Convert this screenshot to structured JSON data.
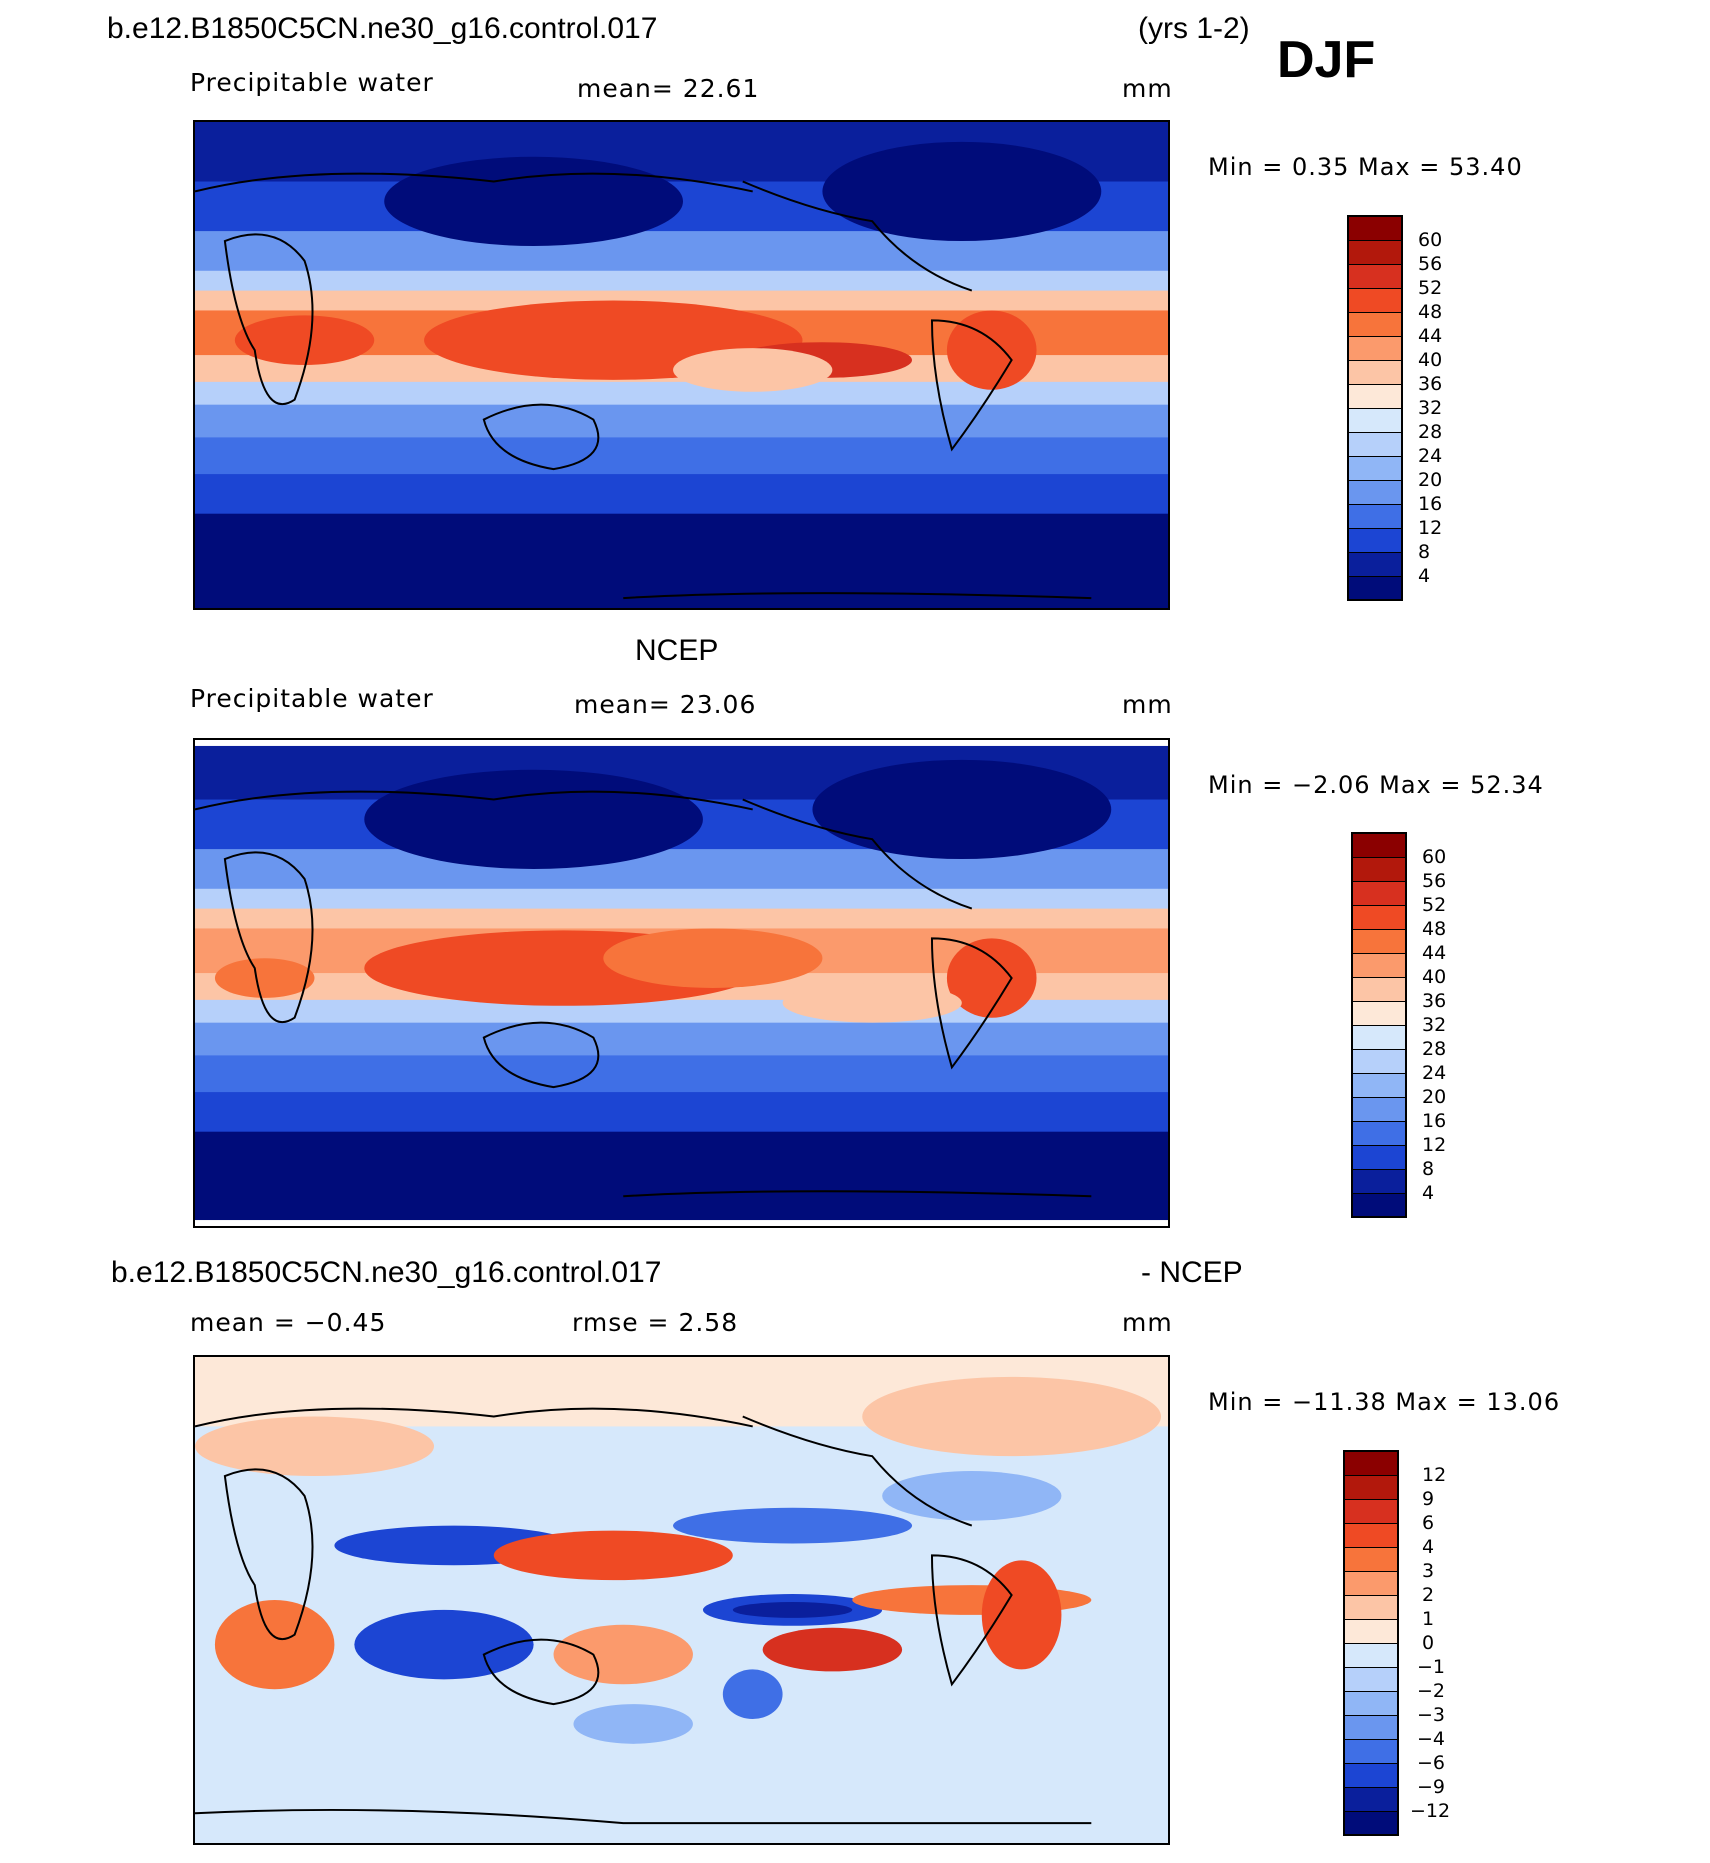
{
  "header": {
    "case_name": "b.e12.B1850C5CN.ne30_g16.control.017",
    "years": "(yrs 1-2)",
    "season": "DJF"
  },
  "panel1": {
    "variable": "Precipitable water",
    "mean_text": "mean=   22.61",
    "units": "mm",
    "minmax_text": "Min  =      0.35  Max  =    53.40",
    "colorbar_labels": [
      "60",
      "56",
      "52",
      "48",
      "44",
      "40",
      "36",
      "32",
      "28",
      "24",
      "20",
      "16",
      "12",
      "8",
      "4"
    ],
    "colorbar_colors": [
      "#8b0000",
      "#b2180c",
      "#d7301f",
      "#ef4a24",
      "#f7743b",
      "#fb9a6c",
      "#fcc5a6",
      "#fde8d8",
      "#d6e8fb",
      "#b6d0fa",
      "#90b6f6",
      "#6a96ef",
      "#3f6fe6",
      "#1c45d3",
      "#0a1f9c",
      "#000c7a"
    ]
  },
  "panel2": {
    "title": "NCEP",
    "variable": "Precipitable water",
    "mean_text": "mean=   23.06",
    "units": "mm",
    "minmax_text": "Min  =    −2.06  Max  =    52.34",
    "colorbar_labels": [
      "60",
      "56",
      "52",
      "48",
      "44",
      "40",
      "36",
      "32",
      "28",
      "24",
      "20",
      "16",
      "12",
      "8",
      "4"
    ],
    "colorbar_colors": [
      "#8b0000",
      "#b2180c",
      "#d7301f",
      "#ef4a24",
      "#f7743b",
      "#fb9a6c",
      "#fcc5a6",
      "#fde8d8",
      "#d6e8fb",
      "#b6d0fa",
      "#90b6f6",
      "#6a96ef",
      "#3f6fe6",
      "#1c45d3",
      "#0a1f9c",
      "#000c7a"
    ]
  },
  "panel3": {
    "title_left": "b.e12.B1850C5CN.ne30_g16.control.017",
    "title_right": "- NCEP",
    "mean_text": "mean  =    −0.45",
    "rmse_text": "rmse  =     2.58",
    "units": "mm",
    "minmax_text": "Min  =  −11.38  Max  =    13.06",
    "colorbar_labels": [
      "12",
      "9",
      "6",
      "4",
      "3",
      "2",
      "1",
      "0",
      "−1",
      "−2",
      "−3",
      "−4",
      "−6",
      "−9",
      "−12"
    ],
    "colorbar_colors": [
      "#8b0000",
      "#b2180c",
      "#d7301f",
      "#ef4a24",
      "#f7743b",
      "#fb9a6c",
      "#fcc5a6",
      "#fde8d8",
      "#d6e8fb",
      "#b6d0fa",
      "#90b6f6",
      "#6a96ef",
      "#3f6fe6",
      "#1c45d3",
      "#0a1f9c",
      "#000c7a"
    ]
  }
}
